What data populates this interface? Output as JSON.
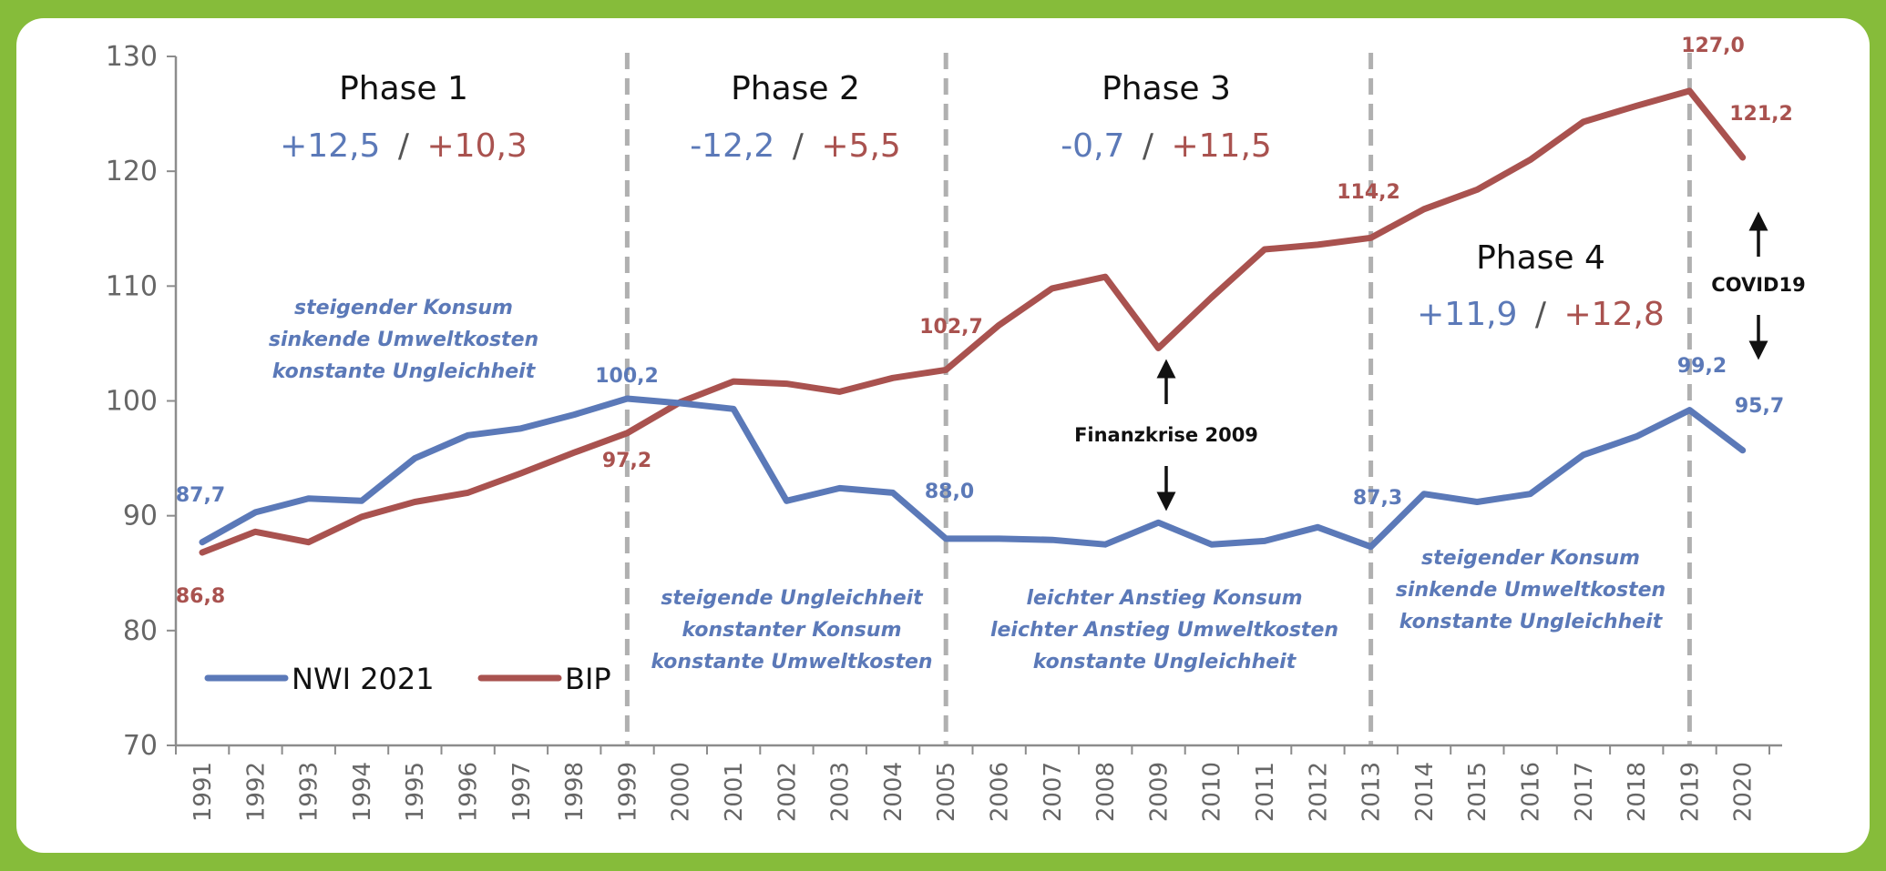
{
  "colors": {
    "nwi": "#5b79b8",
    "bip": "#a9524f",
    "frame": "#86bc3a",
    "phase_line": "#b0b0b0"
  },
  "chart_data": {
    "type": "line",
    "categories": [
      "1991",
      "1992",
      "1993",
      "1994",
      "1995",
      "1996",
      "1997",
      "1998",
      "1999",
      "2000",
      "2001",
      "2002",
      "2003",
      "2004",
      "2005",
      "2006",
      "2007",
      "2008",
      "2009",
      "2010",
      "2011",
      "2012",
      "2013",
      "2014",
      "2015",
      "2016",
      "2017",
      "2018",
      "2019",
      "2020"
    ],
    "yticks": [
      "70",
      "80",
      "90",
      "100",
      "110",
      "120",
      "130"
    ],
    "ylim": [
      70,
      130
    ],
    "grid": false,
    "legend_placement": "bottom-left",
    "series": [
      {
        "name": "NWI 2021",
        "values": [
          87.7,
          90.3,
          91.5,
          91.3,
          95.0,
          97.0,
          97.6,
          98.8,
          100.2,
          99.8,
          99.3,
          91.3,
          92.4,
          92.0,
          88.0,
          88.0,
          87.9,
          87.5,
          89.4,
          87.5,
          87.8,
          89.0,
          87.3,
          91.9,
          91.2,
          91.9,
          95.3,
          96.9,
          99.2,
          95.7
        ]
      },
      {
        "name": "BIP",
        "values": [
          86.8,
          88.6,
          87.7,
          89.9,
          91.2,
          92.0,
          93.7,
          95.5,
          97.2,
          99.9,
          101.7,
          101.5,
          100.8,
          102.0,
          102.7,
          106.6,
          109.8,
          110.8,
          104.6,
          109.0,
          113.2,
          113.6,
          114.2,
          116.7,
          118.4,
          121.0,
          124.3,
          125.7,
          127.0,
          121.2
        ]
      }
    ],
    "phase_dividers": [
      "1999",
      "2005",
      "2013",
      "2019"
    ],
    "phases": [
      {
        "title": "Phase 1",
        "nwi": "+12,5",
        "sep": "/",
        "bip": "+10,3"
      },
      {
        "title": "Phase 2",
        "nwi": "-12,2",
        "sep": "/",
        "bip": "+5,5"
      },
      {
        "title": "Phase 3",
        "nwi": "-0,7",
        "sep": "/",
        "bip": "+11,5"
      },
      {
        "title": "Phase 4",
        "nwi": "+11,9",
        "sep": "/",
        "bip": "+12,8"
      }
    ],
    "value_labels": {
      "nwi_1991": "87,7",
      "bip_1991": "86,8",
      "nwi_1999": "100,2",
      "bip_1999": "97,2",
      "nwi_2005": "88,0",
      "bip_2005": "102,7",
      "nwi_2013": "87,3",
      "bip_2013": "114,2",
      "nwi_2019": "99,2",
      "bip_2019": "127,0",
      "nwi_2020": "95,7",
      "bip_2020": "121,2"
    },
    "notes": {
      "phase1": [
        "steigender Konsum",
        "sinkende Umweltkosten",
        "konstante Ungleichheit"
      ],
      "phase2": [
        "steigende Ungleichheit",
        "konstanter Konsum",
        "konstante Umweltkosten"
      ],
      "phase3": [
        "leichter Anstieg Konsum",
        "leichter Anstieg Umweltkosten",
        "konstante Ungleichheit"
      ],
      "phase4": [
        "steigender Konsum",
        "sinkende Umweltkosten",
        "konstante Ungleichheit"
      ]
    },
    "events": {
      "finanzkrise": "Finanzkrise 2009",
      "covid": "COVID19"
    },
    "legend": {
      "nwi": "NWI 2021",
      "bip": "BIP"
    }
  }
}
